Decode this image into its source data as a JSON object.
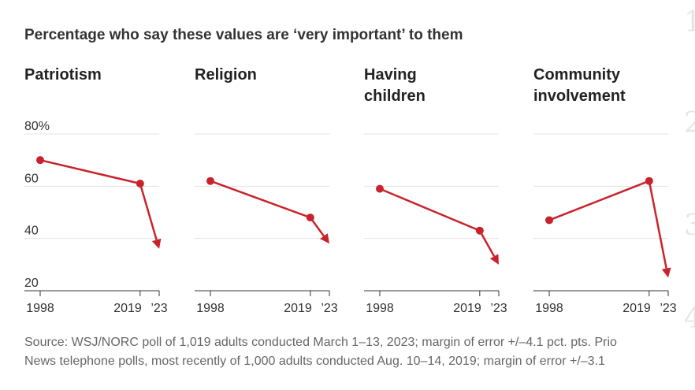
{
  "title": "Percentage who say these values are ‘very important’ to them",
  "edge_glyphs": [
    "1",
    "2",
    "3",
    "4"
  ],
  "source_lines": [
    "Source: WSJ/NORC poll of 1,019 adults conducted March 1–13, 2023; margin of error +/–4.1 pct. pts. Prio",
    "News telephone polls, most recently of 1,000 adults conducted Aug. 10–14, 2019; margin of error +/–3.1"
  ],
  "colors": {
    "series": "#c8232c",
    "grid": "#e3e3e3",
    "text": "#222222",
    "source": "#666666"
  },
  "chart_data": [
    {
      "type": "line",
      "title": "Patriotism",
      "x": [
        1998,
        2019,
        2023
      ],
      "x_tick_labels": [
        "1998",
        "2019",
        "’23"
      ],
      "y_tick_labels": [
        "80%",
        "60",
        "40",
        "20"
      ],
      "y_ticks": [
        80,
        60,
        40,
        20
      ],
      "ylim": [
        20,
        80
      ],
      "values": [
        70,
        61,
        36
      ],
      "marker_points": 2,
      "end_style": "arrow"
    },
    {
      "type": "line",
      "title": "Religion",
      "x": [
        1998,
        2019,
        2023
      ],
      "x_tick_labels": [
        "1998",
        "2019",
        "’23"
      ],
      "y_ticks": [
        80,
        60,
        40,
        20
      ],
      "ylim": [
        20,
        80
      ],
      "values": [
        62,
        48,
        38
      ],
      "marker_points": 2,
      "end_style": "arrow"
    },
    {
      "type": "line",
      "title": "Having children",
      "x": [
        1998,
        2019,
        2023
      ],
      "x_tick_labels": [
        "1998",
        "2019",
        "’23"
      ],
      "y_ticks": [
        80,
        60,
        40,
        20
      ],
      "ylim": [
        20,
        80
      ],
      "values": [
        59,
        43,
        30
      ],
      "marker_points": 2,
      "end_style": "arrow"
    },
    {
      "type": "line",
      "title": "Community involvement",
      "x": [
        1998,
        2019,
        2023
      ],
      "x_tick_labels": [
        "1998",
        "2019",
        "’23"
      ],
      "y_ticks": [
        80,
        60,
        40,
        20
      ],
      "ylim": [
        20,
        80
      ],
      "values": [
        47,
        62,
        25
      ],
      "marker_points": 2,
      "end_style": "arrow"
    }
  ]
}
